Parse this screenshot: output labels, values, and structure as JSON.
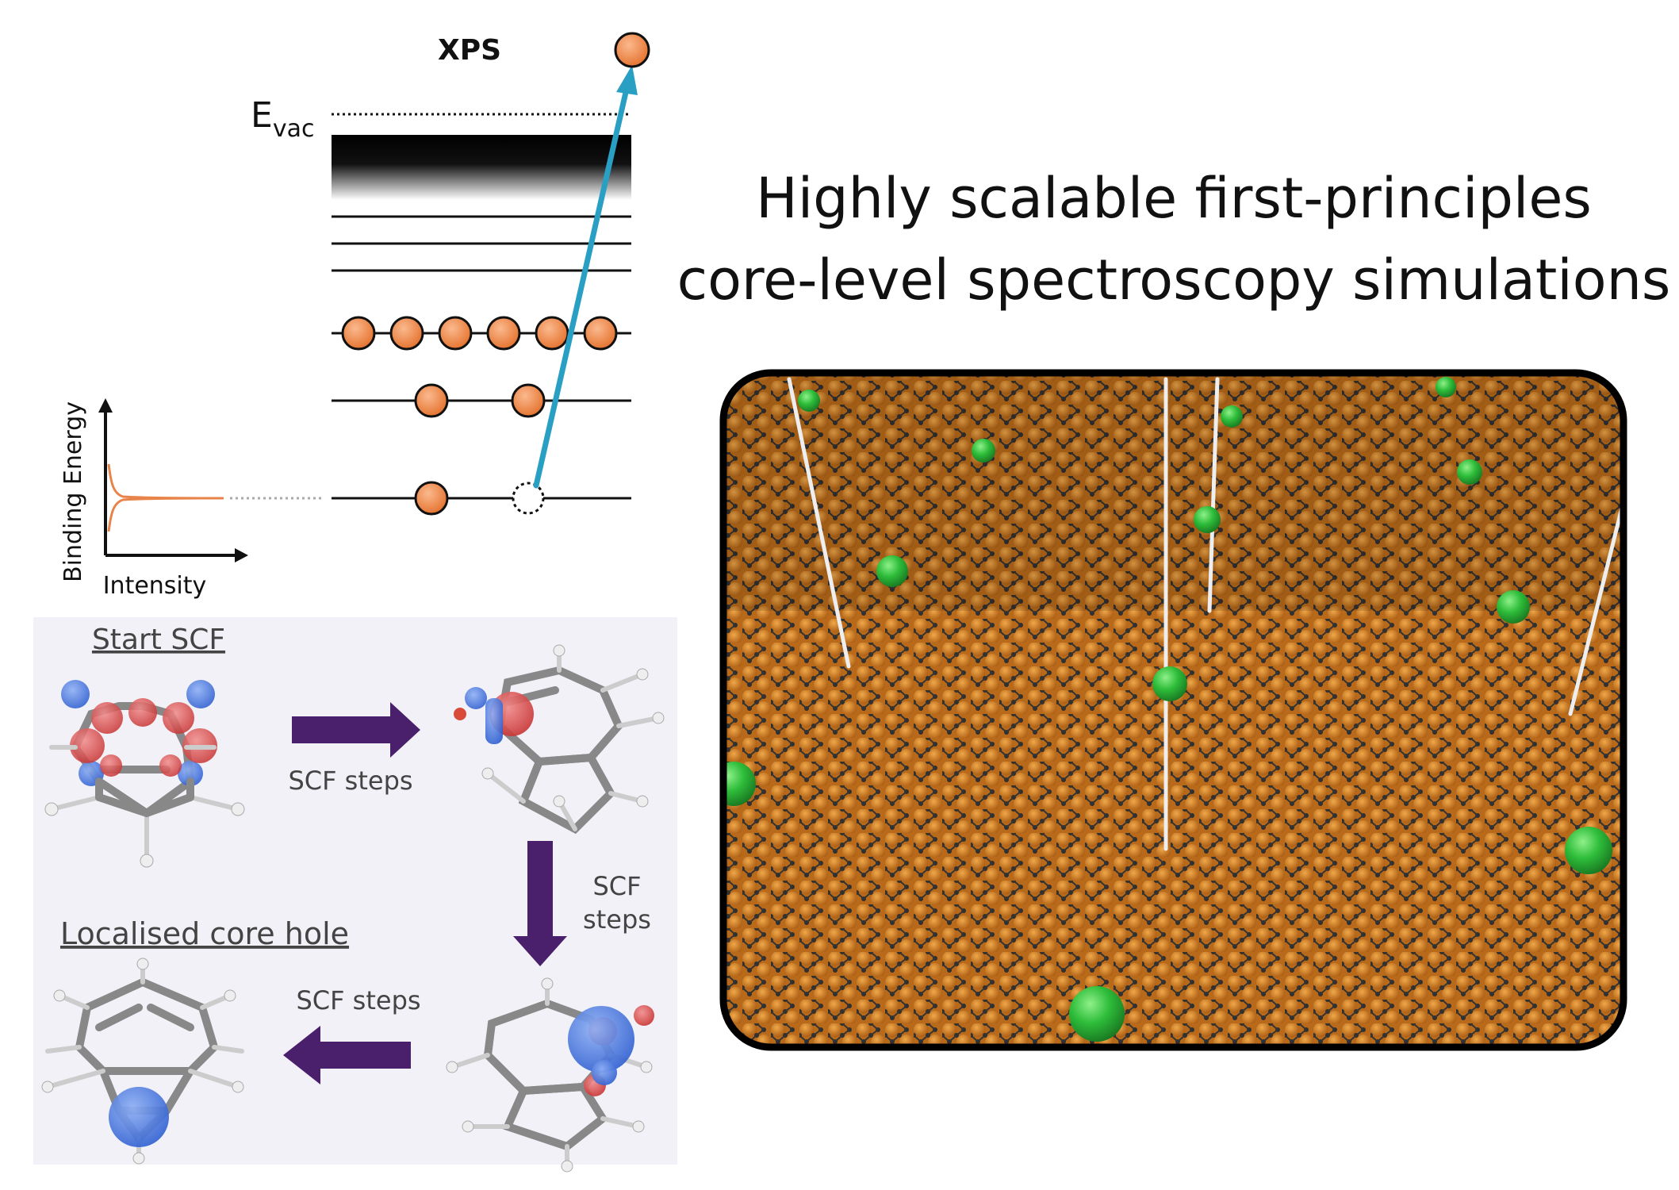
{
  "energy_diagram": {
    "title": "XPS",
    "vacuum_level": "E",
    "vacuum_level_sub": "vac",
    "y_axis_label": "Binding Energy",
    "x_axis_label": "Intensity"
  },
  "scf_panel": {
    "start_label": "Start SCF",
    "step_label_top": "SCF steps",
    "step_label_right_1": "SCF",
    "step_label_right_2": "steps",
    "step_label_bottom": "SCF steps",
    "end_label": "Localised core hole"
  },
  "heading": {
    "line1": "Highly scalable first-principles",
    "line2": "core-level spectroscopy simulations"
  },
  "colors": {
    "electron": "#f08a4b",
    "emission_arrow": "#2a9fc4",
    "step_arrow": "#4a1f6b",
    "panel_bg": "#f1f1f7",
    "copper": "#c7791f",
    "graphene": "#3c3c3c",
    "adsorbate": "#2db83a"
  }
}
